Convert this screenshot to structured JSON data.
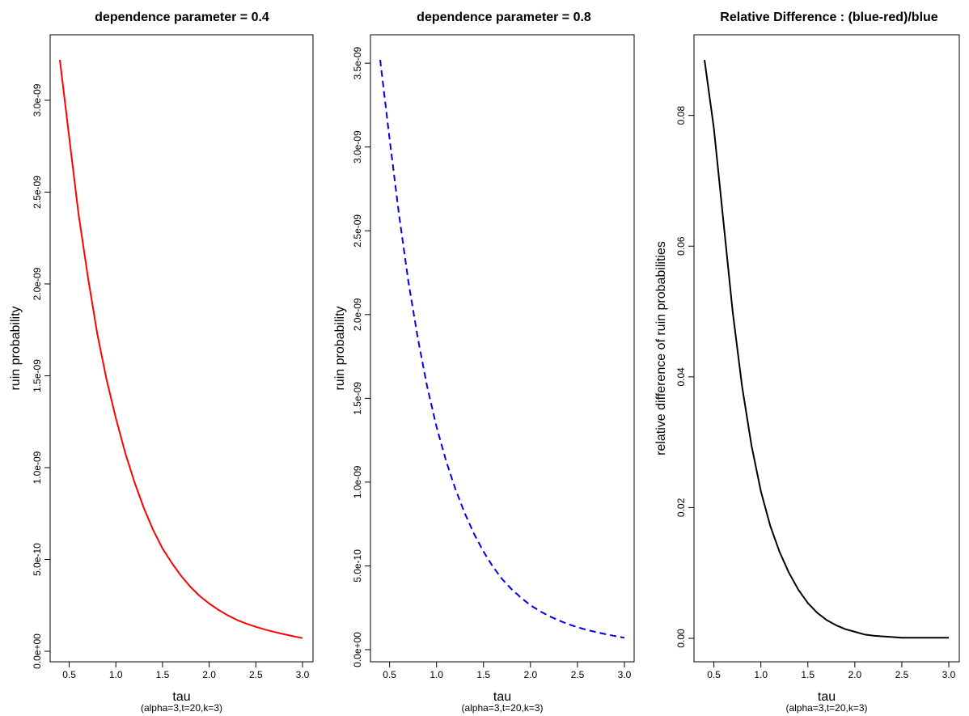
{
  "chart_data": [
    {
      "type": "line",
      "title": "dependence parameter = 0.4",
      "xlabel": "tau",
      "subtitle": "(alpha=3,t=20,k=3)",
      "ylabel": "ruin probability",
      "xlim": [
        0.4,
        3.0
      ],
      "ylim": [
        0,
        3.22e-09
      ],
      "xticks": [
        0.5,
        1.0,
        1.5,
        2.0,
        2.5,
        3.0
      ],
      "xtick_labels": [
        "0.5",
        "1.0",
        "1.5",
        "2.0",
        "2.5",
        "3.0"
      ],
      "yticks": [
        0,
        5e-10,
        1e-09,
        1.5e-09,
        2e-09,
        2.5e-09,
        3e-09
      ],
      "ytick_labels": [
        "0.0e+00",
        "5.0e-10",
        "1.0e-09",
        "1.5e-09",
        "2.0e-09",
        "2.5e-09",
        "3.0e-09"
      ],
      "series": [
        {
          "color": "#ff0000",
          "line_style": "solid",
          "x": [
            0.4,
            0.5,
            0.6,
            0.7,
            0.8,
            0.9,
            1.0,
            1.1,
            1.2,
            1.3,
            1.4,
            1.5,
            1.6,
            1.7,
            1.8,
            1.9,
            2.0,
            2.1,
            2.2,
            2.3,
            2.4,
            2.5,
            2.6,
            2.7,
            2.8,
            2.9,
            3.0
          ],
          "y": [
            3.22e-09,
            2.8e-09,
            2.38e-09,
            2.04e-09,
            1.73e-09,
            1.48e-09,
            1.27e-09,
            1.08e-09,
            9.2e-10,
            7.8e-10,
            6.6e-10,
            5.6e-10,
            4.8e-10,
            4.1e-10,
            3.5e-10,
            3e-10,
            2.6e-10,
            2.25e-10,
            1.95e-10,
            1.7e-10,
            1.5e-10,
            1.33e-10,
            1.18e-10,
            1.05e-10,
            9.3e-11,
            8.2e-11,
            7.2e-11
          ]
        }
      ]
    },
    {
      "type": "line",
      "title": "dependence parameter = 0.8",
      "xlabel": "tau",
      "subtitle": "(alpha=3,t=20,k=3)",
      "ylabel": "ruin probability",
      "xlim": [
        0.4,
        3.0
      ],
      "ylim": [
        0,
        3.52e-09
      ],
      "xticks": [
        0.5,
        1.0,
        1.5,
        2.0,
        2.5,
        3.0
      ],
      "xtick_labels": [
        "0.5",
        "1.0",
        "1.5",
        "2.0",
        "2.5",
        "3.0"
      ],
      "yticks": [
        0,
        5e-10,
        1e-09,
        1.5e-09,
        2e-09,
        2.5e-09,
        3e-09,
        3.5e-09
      ],
      "ytick_labels": [
        "0.0e+00",
        "5.0e-10",
        "1.0e-09",
        "1.5e-09",
        "2.0e-09",
        "2.5e-09",
        "3.0e-09",
        "3.5e-09"
      ],
      "series": [
        {
          "color": "#0000ee",
          "line_style": "dashed",
          "x": [
            0.4,
            0.5,
            0.6,
            0.7,
            0.8,
            0.9,
            1.0,
            1.1,
            1.2,
            1.3,
            1.4,
            1.5,
            1.6,
            1.7,
            1.8,
            1.9,
            2.0,
            2.1,
            2.2,
            2.3,
            2.4,
            2.5,
            2.6,
            2.7,
            2.8,
            2.9,
            3.0
          ],
          "y": [
            3.52e-09,
            3.05e-09,
            2.6e-09,
            2.2e-09,
            1.86e-09,
            1.57e-09,
            1.33e-09,
            1.13e-09,
            9.6e-10,
            8.15e-10,
            6.9e-10,
            5.85e-10,
            4.95e-10,
            4.2e-10,
            3.6e-10,
            3.1e-10,
            2.65e-10,
            2.3e-10,
            2e-10,
            1.75e-10,
            1.52e-10,
            1.34e-10,
            1.18e-10,
            1.05e-10,
            9.2e-11,
            8.1e-11,
            7.1e-11
          ]
        }
      ]
    },
    {
      "type": "line",
      "title": "Relative Difference : (blue-red)/blue",
      "xlabel": "tau",
      "subtitle": "(alpha=3,t=20,k=3)",
      "ylabel": "relative difference of ruin probabilities",
      "xlim": [
        0.4,
        3.0
      ],
      "ylim": [
        0,
        0.0885
      ],
      "xticks": [
        0.5,
        1.0,
        1.5,
        2.0,
        2.5,
        3.0
      ],
      "xtick_labels": [
        "0.5",
        "1.0",
        "1.5",
        "2.0",
        "2.5",
        "3.0"
      ],
      "yticks": [
        0.0,
        0.02,
        0.04,
        0.06,
        0.08
      ],
      "ytick_labels": [
        "0.00",
        "0.02",
        "0.04",
        "0.06",
        "0.08"
      ],
      "series": [
        {
          "color": "#000000",
          "line_style": "solid",
          "x": [
            0.4,
            0.5,
            0.6,
            0.7,
            0.8,
            0.9,
            1.0,
            1.1,
            1.2,
            1.3,
            1.4,
            1.5,
            1.6,
            1.7,
            1.8,
            1.9,
            2.0,
            2.1,
            2.2,
            2.3,
            2.4,
            2.5,
            2.6,
            2.7,
            2.8,
            2.9,
            3.0
          ],
          "y": [
            0.0885,
            0.078,
            0.064,
            0.05,
            0.0385,
            0.0295,
            0.0225,
            0.0172,
            0.0132,
            0.01,
            0.0074,
            0.0054,
            0.0039,
            0.0028,
            0.002,
            0.0014,
            0.001,
            0.0006,
            0.0004,
            0.0003,
            0.0002,
            0.0001,
            0.0001,
            0.0001,
            0.0001,
            0.0001,
            0.0001
          ]
        }
      ]
    }
  ]
}
